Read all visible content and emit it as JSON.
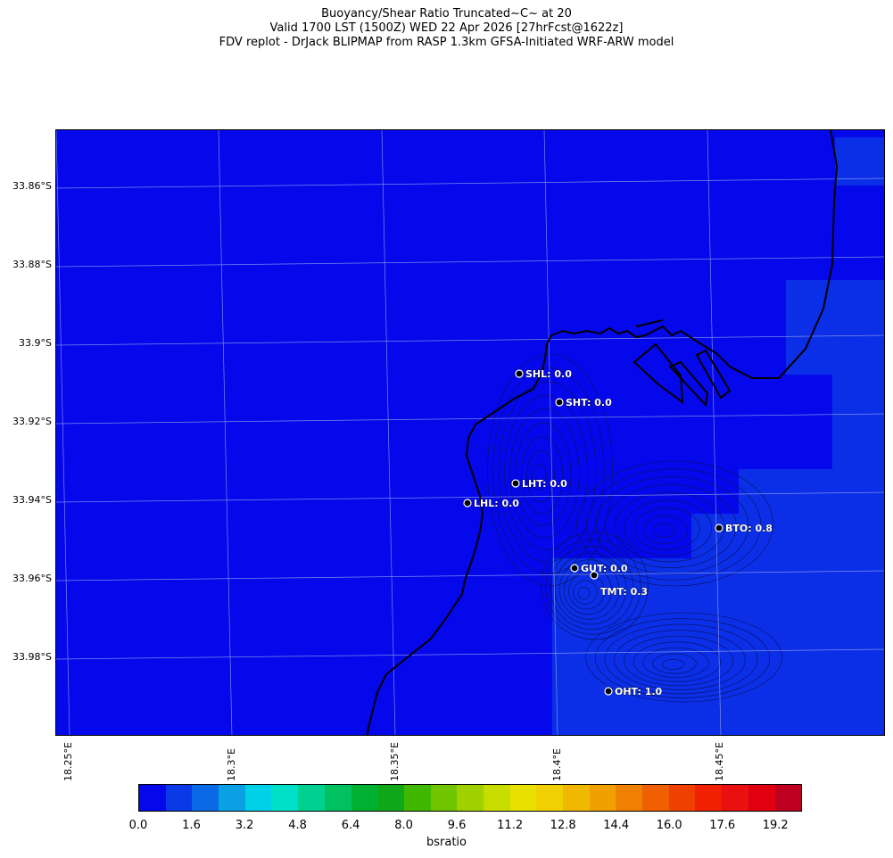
{
  "title": {
    "line1": "Buoyancy/Shear Ratio Truncated~C~    at 20",
    "line2": "Valid 1700 LST (1500Z) WED 22 Apr 2026 [27hrFcst@1622z]",
    "line3": "FDV replot - DrJack BLIPMAP from RASP 1.3km GFSA-Initiated WRF-ARW model"
  },
  "map": {
    "lat_labels": [
      "33.86°S",
      "33.88°S",
      "33.9°S",
      "33.92°S",
      "33.94°S",
      "33.96°S",
      "33.98°S"
    ],
    "lon_labels": [
      "18.25°E",
      "18.3°E",
      "18.35°E",
      "18.4°E",
      "18.45°E"
    ],
    "stations": [
      {
        "id": "SHL",
        "label": "SHL: 0.0",
        "value": 0.0
      },
      {
        "id": "SHT",
        "label": "SHT: 0.0",
        "value": 0.0
      },
      {
        "id": "LHT",
        "label": "LHT: 0.0",
        "value": 0.0
      },
      {
        "id": "LHL",
        "label": "LHL: 0.0",
        "value": 0.0
      },
      {
        "id": "BTO",
        "label": "BTO: 0.8",
        "value": 0.8
      },
      {
        "id": "GUT",
        "label": "GUT: 0.0",
        "value": 0.0
      },
      {
        "id": "TMT",
        "label": "TMT: 0.3",
        "value": 0.3
      },
      {
        "id": "OHT",
        "label": "OHT: 1.0",
        "value": 1.0
      }
    ],
    "field_colors": {
      "low": "#0508ea",
      "mid": "#0a2fe6"
    }
  },
  "colorbar": {
    "title": "bsratio",
    "tick_labels": [
      "0.0",
      "1.6",
      "3.2",
      "4.8",
      "6.4",
      "8.0",
      "9.6",
      "11.2",
      "12.8",
      "14.4",
      "16.0",
      "17.6",
      "19.2"
    ],
    "colors": [
      "#0508ea",
      "#0a3ae8",
      "#0a6ae6",
      "#0aa0e4",
      "#00d0e8",
      "#00e0c8",
      "#00d090",
      "#00c060",
      "#00b030",
      "#10a818",
      "#40b800",
      "#70c400",
      "#a0d000",
      "#c8dc00",
      "#e8e000",
      "#f0d000",
      "#f0b800",
      "#f0a000",
      "#f08000",
      "#f06000",
      "#f04000",
      "#f02000",
      "#e81010",
      "#e00010",
      "#c00020"
    ]
  }
}
